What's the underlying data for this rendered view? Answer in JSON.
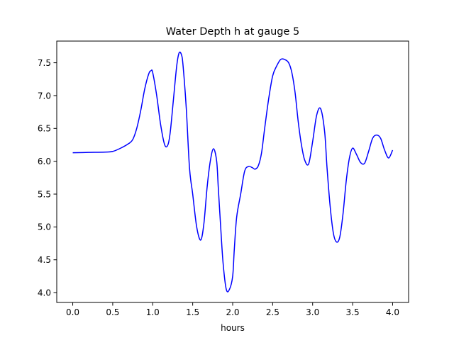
{
  "chart_data": {
    "type": "line",
    "title": "Water Depth h at gauge 5",
    "xlabel": "hours",
    "ylabel": "",
    "xlim": [
      -0.2,
      4.2
    ],
    "ylim": [
      3.85,
      7.83
    ],
    "xticks": [
      0.0,
      0.5,
      1.0,
      1.5,
      2.0,
      2.5,
      3.0,
      3.5,
      4.0
    ],
    "xtick_labels": [
      "0.0",
      "0.5",
      "1.0",
      "1.5",
      "2.0",
      "2.5",
      "3.0",
      "3.5",
      "4.0"
    ],
    "yticks": [
      4.0,
      4.5,
      5.0,
      5.5,
      6.0,
      6.5,
      7.0,
      7.5
    ],
    "ytick_labels": [
      "4.0",
      "4.5",
      "5.0",
      "5.5",
      "6.0",
      "6.5",
      "7.0",
      "7.5"
    ],
    "grid": false,
    "series": [
      {
        "color": "#0000ff",
        "x": [
          0.0,
          0.2,
          0.4,
          0.5,
          0.6,
          0.7,
          0.75,
          0.8,
          0.85,
          0.9,
          0.95,
          0.98,
          1.0,
          1.05,
          1.1,
          1.15,
          1.19,
          1.22,
          1.26,
          1.3,
          1.33,
          1.36,
          1.38,
          1.42,
          1.46,
          1.5,
          1.55,
          1.6,
          1.64,
          1.68,
          1.72,
          1.76,
          1.8,
          1.82,
          1.85,
          1.88,
          1.92,
          1.96,
          2.0,
          2.02,
          2.05,
          2.1,
          2.15,
          2.2,
          2.25,
          2.28,
          2.32,
          2.36,
          2.4,
          2.45,
          2.5,
          2.55,
          2.6,
          2.65,
          2.7,
          2.74,
          2.78,
          2.82,
          2.86,
          2.9,
          2.95,
          3.0,
          3.05,
          3.1,
          3.15,
          3.18,
          3.22,
          3.26,
          3.3,
          3.34,
          3.38,
          3.42,
          3.46,
          3.5,
          3.55,
          3.6,
          3.65,
          3.7,
          3.75,
          3.8,
          3.85,
          3.9,
          3.95,
          4.0
        ],
        "y": [
          6.13,
          6.135,
          6.14,
          6.15,
          6.2,
          6.27,
          6.33,
          6.5,
          6.77,
          7.1,
          7.33,
          7.38,
          7.35,
          7.0,
          6.55,
          6.25,
          6.25,
          6.45,
          6.95,
          7.45,
          7.65,
          7.62,
          7.45,
          6.8,
          5.9,
          5.5,
          5.0,
          4.8,
          5.05,
          5.6,
          6.0,
          6.19,
          6.0,
          5.6,
          5.0,
          4.45,
          4.05,
          4.05,
          4.25,
          4.65,
          5.15,
          5.5,
          5.85,
          5.92,
          5.9,
          5.88,
          5.93,
          6.12,
          6.5,
          6.95,
          7.3,
          7.45,
          7.55,
          7.55,
          7.5,
          7.35,
          7.05,
          6.6,
          6.25,
          6.02,
          5.96,
          6.3,
          6.7,
          6.8,
          6.45,
          5.9,
          5.3,
          4.9,
          4.77,
          4.85,
          5.2,
          5.7,
          6.05,
          6.2,
          6.1,
          5.98,
          5.97,
          6.15,
          6.35,
          6.4,
          6.35,
          6.17,
          6.05,
          6.17
        ]
      }
    ]
  }
}
